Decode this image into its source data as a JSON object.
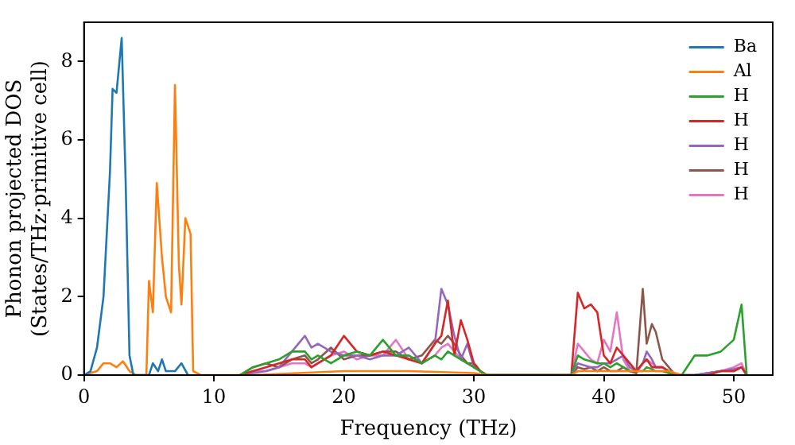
{
  "chart_data": {
    "type": "line",
    "xlabel": "Frequency (THz)",
    "ylabel": "Phonon projected DOS\n(States/THz·primitive cell)",
    "xlim": [
      0,
      53
    ],
    "ylim": [
      0,
      9
    ],
    "xticks": [
      0,
      10,
      20,
      30,
      40,
      50
    ],
    "yticks": [
      0,
      2,
      4,
      6,
      8
    ],
    "grid": false,
    "legend": "top right",
    "marker": "none",
    "line_style": "solid",
    "series": [
      {
        "name": "Ba",
        "color": "#1f77b4",
        "x": [
          0,
          0.5,
          1,
          1.5,
          2,
          2.2,
          2.5,
          2.9,
          3.2,
          3.5,
          3.8,
          5,
          5.3,
          5.7,
          6,
          6.3,
          7,
          7.5,
          8
        ],
        "values": [
          0,
          0.1,
          0.7,
          2,
          5.2,
          7.3,
          7.2,
          8.6,
          5,
          0.5,
          0,
          0,
          0.3,
          0.1,
          0.4,
          0.1,
          0.1,
          0.3,
          0
        ]
      },
      {
        "name": "Al",
        "color": "#ff7f0e",
        "x": [
          0,
          1,
          1.5,
          2,
          2.5,
          3,
          3.5,
          4,
          4.8,
          5,
          5.3,
          5.6,
          6,
          6.3,
          6.7,
          7,
          7.3,
          7.5,
          7.8,
          8.2,
          8.4,
          9,
          13,
          20,
          25,
          30,
          31,
          37.5,
          38,
          45,
          46
        ],
        "values": [
          0,
          0.1,
          0.3,
          0.3,
          0.2,
          0.35,
          0.1,
          0,
          0,
          2.4,
          1.6,
          4.9,
          3,
          2,
          1.6,
          7.4,
          2.8,
          1.8,
          4,
          3.6,
          0.1,
          0,
          0,
          0.1,
          0.1,
          0.05,
          0,
          0,
          0.1,
          0.1,
          0
        ]
      },
      {
        "name": "H",
        "color": "#2ca02c",
        "x": [
          12,
          13,
          14,
          15,
          16,
          17,
          17.5,
          18,
          19,
          20,
          21,
          22,
          23,
          24,
          25,
          26,
          27,
          27.5,
          28,
          28.5,
          29,
          29.5,
          30,
          30.5,
          31,
          37.5,
          38,
          38.5,
          39,
          39.5,
          40,
          40.5,
          41,
          41.5,
          42,
          42.5,
          43,
          43.3,
          43.7,
          44,
          44.5,
          45,
          45.5,
          46,
          47,
          48,
          49,
          50,
          50.6,
          51
        ],
        "values": [
          0,
          0.2,
          0.3,
          0.4,
          0.6,
          0.6,
          0.4,
          0.5,
          0.3,
          0.5,
          0.6,
          0.5,
          0.9,
          0.5,
          0.5,
          0.3,
          0.5,
          0.4,
          0.6,
          0.5,
          0.4,
          0.3,
          0.2,
          0.1,
          0,
          0,
          0.5,
          0.4,
          0.35,
          0.3,
          0.3,
          0.2,
          0.3,
          0.2,
          0.1,
          0.1,
          0.1,
          0.2,
          0.15,
          0.1,
          0.1,
          0.05,
          0,
          0,
          0.5,
          0.5,
          0.6,
          0.9,
          1.8,
          0
        ]
      },
      {
        "name": "H",
        "color": "#d62728",
        "x": [
          12,
          13,
          14,
          15,
          16,
          17,
          17.5,
          18,
          19,
          20,
          21,
          22,
          23,
          24,
          25,
          26,
          27,
          27.5,
          28,
          28.5,
          29,
          29.5,
          30,
          30.5,
          31,
          37.5,
          38,
          38.5,
          39,
          39.5,
          40,
          40.5,
          41,
          41.5,
          42,
          42.5,
          43,
          43.3,
          43.7,
          44,
          44.5,
          45,
          45.5,
          46,
          47,
          48,
          49,
          50,
          50.6,
          51
        ],
        "values": [
          0,
          0.1,
          0.2,
          0.3,
          0.4,
          0.4,
          0.2,
          0.3,
          0.5,
          1.0,
          0.6,
          0.5,
          0.6,
          0.5,
          0.4,
          0.3,
          0.8,
          1.0,
          1.9,
          0.5,
          1.4,
          0.9,
          0.3,
          0.1,
          0,
          0,
          2.1,
          1.7,
          1.8,
          1.6,
          0.5,
          0.3,
          0.7,
          0.5,
          0.3,
          0.1,
          0.3,
          0.4,
          0.2,
          0.2,
          0.2,
          0.1,
          0,
          0,
          null,
          0,
          0.1,
          0.1,
          0.2,
          0
        ]
      },
      {
        "name": "H",
        "color": "#9467bd",
        "x": [
          12,
          13,
          14,
          15,
          16,
          17,
          17.5,
          18,
          19,
          20,
          21,
          22,
          23,
          24,
          25,
          26,
          27,
          27.5,
          28,
          28.5,
          29,
          29.5,
          30,
          30.5,
          31,
          37.5,
          38,
          38.5,
          39,
          39.5,
          40,
          40.5,
          41,
          41.5,
          42,
          42.5,
          43,
          43.3,
          43.7,
          44,
          44.5,
          45,
          45.5,
          46,
          47,
          48,
          49,
          50,
          50.6,
          51
        ],
        "values": [
          0,
          0.05,
          0.1,
          0.2,
          0.6,
          1.0,
          0.7,
          0.8,
          0.6,
          0.5,
          0.5,
          0.4,
          0.5,
          0.5,
          0.7,
          0.3,
          0.8,
          2.2,
          1.8,
          1.0,
          0.4,
          0.8,
          0.2,
          0.1,
          0,
          0,
          0.3,
          0.25,
          0.2,
          0.2,
          0.3,
          0.3,
          0.4,
          0.5,
          0.2,
          0.1,
          0.3,
          0.6,
          0.4,
          0.2,
          0.2,
          0.1,
          0,
          0,
          0,
          0.05,
          0.1,
          0.15,
          0.2,
          0
        ]
      },
      {
        "name": "H",
        "color": "#8c564b",
        "x": [
          12,
          13,
          14,
          15,
          16,
          17,
          17.5,
          18,
          19,
          20,
          21,
          22,
          23,
          24,
          25,
          26,
          27,
          27.5,
          28,
          28.5,
          29,
          29.5,
          30,
          30.5,
          31,
          37.5,
          38,
          38.5,
          39,
          39.5,
          40,
          40.5,
          41,
          41.5,
          42,
          42.5,
          43,
          43.3,
          43.7,
          44,
          44.5,
          45,
          45.5,
          46,
          47,
          48,
          49,
          50,
          50.6,
          51
        ],
        "values": [
          0,
          0.2,
          0.3,
          0.2,
          0.4,
          0.5,
          0.3,
          0.4,
          0.7,
          0.4,
          0.5,
          0.5,
          0.6,
          0.6,
          0.4,
          0.5,
          0.9,
          0.8,
          1.0,
          0.8,
          0.5,
          0.3,
          0.3,
          0.1,
          0,
          0,
          0.2,
          0.15,
          0.2,
          0.1,
          0.2,
          0.1,
          0.1,
          0.2,
          0.1,
          0.05,
          2.2,
          0.8,
          1.3,
          1.1,
          0.4,
          0.2,
          0,
          0,
          0,
          0.05,
          0.1,
          0.1,
          0.2,
          0
        ]
      },
      {
        "name": "H",
        "color": "#e377c2",
        "x": [
          12,
          13,
          14,
          15,
          16,
          17,
          17.5,
          18,
          19,
          20,
          21,
          22,
          23,
          24,
          25,
          26,
          27,
          27.5,
          28,
          28.5,
          29,
          29.5,
          30,
          30.5,
          31,
          37.5,
          38,
          38.5,
          39,
          39.5,
          40,
          40.5,
          41,
          41.5,
          42,
          42.5,
          43,
          43.3,
          43.7,
          44,
          44.5,
          45,
          45.5,
          46,
          47,
          48,
          49,
          50,
          50.6,
          51
        ],
        "values": [
          0,
          0.1,
          0.1,
          0.2,
          0.3,
          0.3,
          0.2,
          0.3,
          0.5,
          0.6,
          0.4,
          0.5,
          0.5,
          0.9,
          0.4,
          0.3,
          0.5,
          0.7,
          0.8,
          0.6,
          0.4,
          0.3,
          0.2,
          0.1,
          0,
          0,
          0.8,
          0.6,
          0.4,
          0.3,
          0.9,
          0.6,
          1.6,
          0.4,
          0.1,
          0.05,
          0.3,
          0.4,
          0.3,
          0.2,
          0.2,
          0.1,
          0,
          0,
          0,
          0.05,
          0.1,
          0.2,
          0.3,
          0
        ]
      }
    ]
  }
}
